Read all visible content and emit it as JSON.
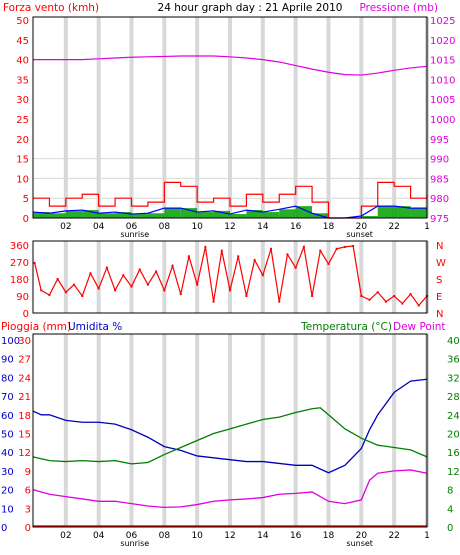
{
  "colors": {
    "wind": "#ff0000",
    "gust_fill": "#00a000",
    "avg": "#0000ff",
    "pressure": "#e000e0",
    "rain": "#ff0000",
    "humidity": "#0000c0",
    "temperature": "#008000",
    "dewpoint": "#e000e0",
    "grid": "#d8d8d8",
    "frame": "#000000"
  },
  "hour_labels": [
    "02",
    "04",
    "06",
    "08",
    "10",
    "12",
    "14",
    "16",
    "18",
    "20",
    "22",
    "1"
  ],
  "sun": {
    "sunrise": "sunrise",
    "sunset": "sunset"
  },
  "chart_data": [
    {
      "type": "line",
      "title": "24 hour graph day : 21 Aprile 2010",
      "left_axis_label": "Forza vento (kmh)",
      "right_axis_label": "Pressione (mb)",
      "left_ticks": [
        "0",
        "5",
        "10",
        "15",
        "20",
        "25",
        "30",
        "35",
        "40",
        "45",
        "50"
      ],
      "right_ticks": [
        "975",
        "980",
        "985",
        "990",
        "995",
        "1000",
        "1005",
        "1010",
        "1015",
        "1020",
        "1025"
      ],
      "left_inner_ticks": [
        "0",
        "5",
        "10",
        "15"
      ],
      "ylim_left": [
        0,
        50
      ],
      "ylim_right": [
        975,
        1025
      ],
      "x_range_hours": [
        0,
        24
      ],
      "series": [
        {
          "role": "pressure",
          "x": [
            0,
            1,
            2,
            3,
            4,
            5,
            6,
            7,
            8,
            9,
            10,
            11,
            12,
            13,
            14,
            15,
            16,
            17,
            18,
            19,
            20,
            21,
            22,
            23,
            24
          ],
          "values": [
            1015,
            1015,
            1015,
            1015,
            1015.2,
            1015.4,
            1015.6,
            1015.7,
            1015.8,
            1015.9,
            1015.9,
            1015.9,
            1015.7,
            1015.4,
            1015,
            1014.4,
            1013.5,
            1012.6,
            1011.8,
            1011.2,
            1011.1,
            1011.6,
            1012.3,
            1012.9,
            1013.3
          ]
        },
        {
          "role": "wind-gust",
          "x": [
            0,
            1,
            2,
            3,
            4,
            5,
            6,
            7,
            8,
            9,
            10,
            11,
            12,
            13,
            14,
            15,
            16,
            17,
            18,
            19,
            20,
            21,
            22,
            23,
            24
          ],
          "values": [
            5,
            3,
            5,
            6,
            3,
            5,
            3,
            4,
            9,
            8,
            4,
            5,
            3,
            6,
            4,
            6,
            8,
            4,
            0,
            0,
            3,
            9,
            8,
            5,
            6
          ]
        },
        {
          "role": "wind-average",
          "x": [
            0,
            1,
            2,
            3,
            4,
            5,
            6,
            7,
            8,
            9,
            10,
            11,
            12,
            13,
            14,
            15,
            16,
            17,
            18,
            19,
            20,
            21,
            22,
            23,
            24
          ],
          "values": [
            1.5,
            1.2,
            1.8,
            2,
            1.2,
            1.5,
            1,
            1.2,
            2.5,
            2.5,
            1.5,
            1.8,
            1,
            2,
            1.5,
            2.2,
            3,
            1.2,
            0,
            0,
            0.5,
            3,
            3,
            2.5,
            2.5
          ]
        }
      ]
    },
    {
      "type": "scatter",
      "title": "",
      "left_ticks": [
        "0",
        "90",
        "180",
        "270",
        "360"
      ],
      "right_ticks": [
        "N",
        "E",
        "S",
        "W",
        "N"
      ],
      "ylim": [
        0,
        360
      ],
      "x_range_hours": [
        0,
        24
      ],
      "series": [
        {
          "role": "wind-direction",
          "x": [
            0.1,
            0.5,
            1,
            1.5,
            2,
            2.5,
            3,
            3.5,
            4,
            4.5,
            5,
            5.5,
            6,
            6.5,
            7,
            7.5,
            8,
            8.5,
            9,
            9.5,
            10,
            10.5,
            11,
            11.5,
            12,
            12.5,
            13,
            13.5,
            14,
            14.5,
            15,
            15.5,
            16,
            16.5,
            17,
            17.5,
            18,
            18.5,
            19,
            19.5,
            20,
            20.5,
            21,
            21.5,
            22,
            22.5,
            23,
            23.5,
            24
          ],
          "values": [
            265,
            120,
            95,
            180,
            110,
            150,
            90,
            210,
            130,
            240,
            120,
            200,
            140,
            230,
            150,
            220,
            120,
            250,
            100,
            300,
            150,
            350,
            60,
            330,
            120,
            300,
            90,
            280,
            200,
            340,
            60,
            310,
            240,
            350,
            90,
            330,
            260,
            340,
            350,
            355,
            90,
            70,
            110,
            60,
            90,
            50,
            100,
            40,
            90
          ]
        }
      ]
    },
    {
      "type": "line",
      "title": "",
      "rain_axis_label": "Pioggia (mm)",
      "humidity_axis_label": "Umidita %",
      "temperature_axis_label": "Temperatura (°C)",
      "dewpoint_axis_label": "Dew Point",
      "humidity_ticks": [
        "0",
        "10",
        "20",
        "30",
        "40",
        "50",
        "60",
        "70",
        "80",
        "90",
        "100"
      ],
      "rain_ticks": [
        "0",
        "3",
        "6",
        "9",
        "12",
        "15",
        "18",
        "21",
        "24",
        "27",
        "30"
      ],
      "temperature_ticks": [
        "0",
        "4",
        "8",
        "12",
        "16",
        "20",
        "24",
        "28",
        "32",
        "36",
        "40"
      ],
      "ylim_humidity": [
        0,
        100
      ],
      "ylim_temperature": [
        0,
        40
      ],
      "x_range_hours": [
        0,
        24
      ],
      "series": [
        {
          "role": "humidity",
          "x": [
            0,
            0.5,
            1,
            2,
            3,
            4,
            5,
            6,
            7,
            8,
            9,
            10,
            11,
            12,
            13,
            14,
            15,
            16,
            17,
            18,
            19,
            20,
            20.5,
            21,
            22,
            23,
            24
          ],
          "values": [
            62,
            60,
            60,
            57,
            56,
            56,
            55,
            52,
            48,
            43,
            41,
            38,
            37,
            36,
            35,
            35,
            34,
            33,
            33,
            29,
            33,
            42,
            52,
            60,
            72,
            78,
            79
          ]
        },
        {
          "role": "temperature",
          "x": [
            0,
            1,
            2,
            3,
            4,
            5,
            6,
            7,
            8,
            9,
            10,
            11,
            12,
            13,
            14,
            15,
            16,
            17,
            17.5,
            18,
            19,
            20,
            21,
            22,
            23,
            24
          ],
          "values": [
            15,
            14.2,
            14,
            14.2,
            14,
            14.2,
            13.5,
            13.8,
            15.5,
            17,
            18.5,
            20,
            21,
            22,
            23,
            23.5,
            24.5,
            25.3,
            25.5,
            24,
            21,
            19,
            17.5,
            17,
            16.5,
            15
          ]
        },
        {
          "role": "dewpoint",
          "x": [
            0,
            1,
            2,
            3,
            4,
            5,
            6,
            7,
            8,
            9,
            10,
            11,
            12,
            13,
            14,
            15,
            16,
            17,
            18,
            19,
            20,
            20.5,
            21,
            22,
            23,
            24
          ],
          "values": [
            8,
            7,
            6.5,
            6,
            5.5,
            5.5,
            5,
            4.5,
            4.2,
            4.3,
            4.8,
            5.5,
            5.8,
            6,
            6.3,
            7,
            7.2,
            7.5,
            5.5,
            5,
            5.8,
            10,
            11.5,
            12,
            12.2,
            11.5
          ]
        },
        {
          "role": "rain",
          "x": [
            0,
            24
          ],
          "values": [
            0,
            0
          ]
        }
      ]
    }
  ]
}
